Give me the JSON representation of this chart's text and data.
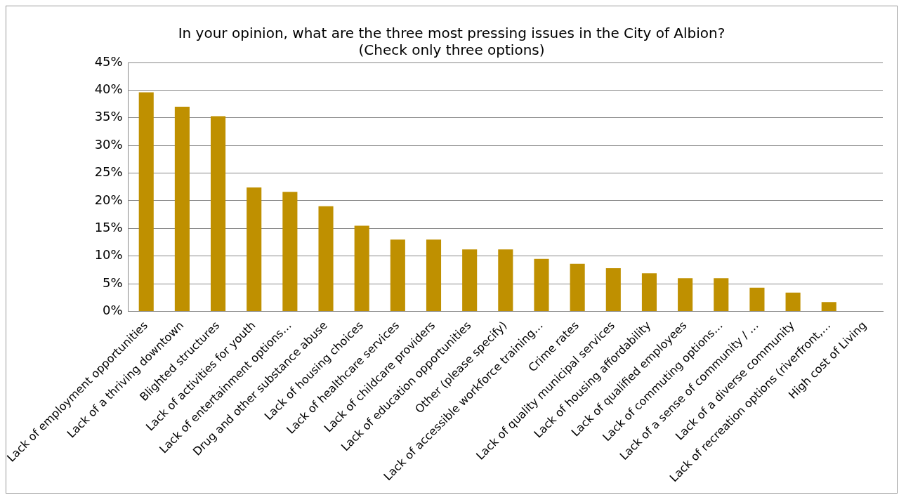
{
  "chart_data": {
    "type": "bar",
    "title": [
      "In your opinion, what are the three most pressing issues in the City of Albion?",
      "(Check only three options)"
    ],
    "categories": [
      "Lack of employment opportunities",
      "Lack of a thriving downtown",
      "Blighted structures",
      "Lack of activities for youth",
      "Lack of entertainment options…",
      "Drug and other substance abuse",
      "Lack of housing choices",
      "Lack of healthcare services",
      "Lack of childcare providers",
      "Lack of education opportunities",
      "Other (please specify)",
      "Lack of accessible workforce training…",
      "Crime rates",
      "Lack of quality municipal services",
      "Lack of housing affordability",
      "Lack of qualified employees",
      "Lack of commuting options…",
      "Lack of a sense of community / …",
      "Lack of a diverse community",
      "Lack of recreation options (riverfront,…",
      "High cost of Living"
    ],
    "values": [
      39.6,
      37.0,
      35.3,
      22.4,
      21.6,
      19.0,
      15.5,
      13.0,
      13.0,
      11.2,
      11.2,
      9.5,
      8.6,
      7.8,
      6.9,
      6.0,
      6.0,
      4.3,
      3.4,
      1.7,
      0
    ],
    "color": "#bf9000",
    "ylim": [
      0,
      45
    ],
    "yticks": [
      {
        "value": 0,
        "label": "0%"
      },
      {
        "value": 5,
        "label": "5%"
      },
      {
        "value": 10,
        "label": "10%"
      },
      {
        "value": 15,
        "label": "15%"
      },
      {
        "value": 20,
        "label": "20%"
      },
      {
        "value": 25,
        "label": "25%"
      },
      {
        "value": 30,
        "label": "30%"
      },
      {
        "value": 35,
        "label": "35%"
      },
      {
        "value": 40,
        "label": "40%"
      },
      {
        "value": 45,
        "label": "45%"
      }
    ],
    "grid": "y",
    "legend": false
  }
}
